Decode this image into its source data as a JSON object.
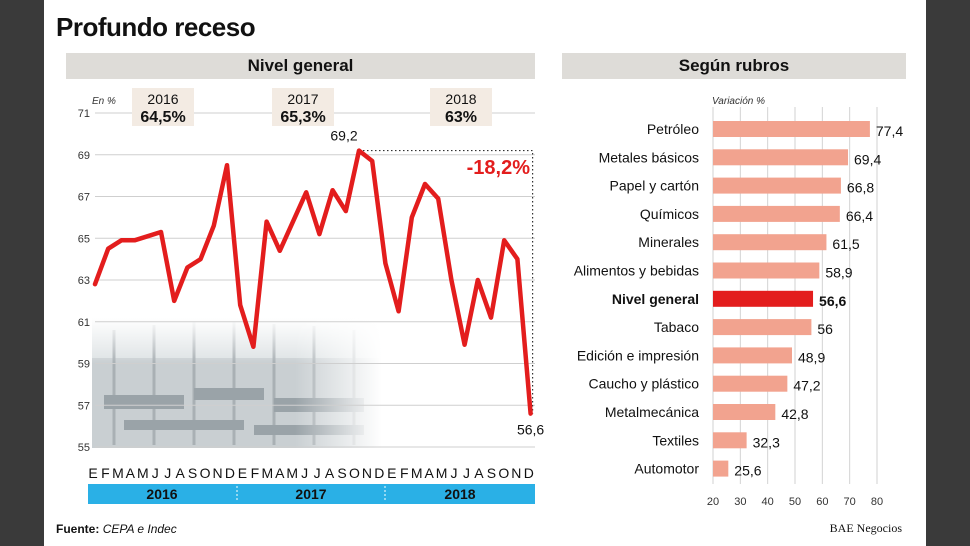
{
  "title": "Profundo receso",
  "left_panel": {
    "header": "Nivel general",
    "unit_label": "En %"
  },
  "right_panel": {
    "header": "Según rubros",
    "unit_label": "Variación %"
  },
  "source": {
    "label": "Fuente:",
    "text": "CEPA e Indec"
  },
  "credit": "BAE Negocios",
  "colors": {
    "line": "#e31d1d",
    "bar": "#f2a38f",
    "highlight_bar": "#e31d1d",
    "year_band": "#2ab0e6",
    "header_band": "#dedcd8"
  },
  "chart_data": [
    {
      "type": "line",
      "y_ticks": [
        "55",
        "57",
        "59",
        "61",
        "63",
        "65",
        "67",
        "69",
        "71"
      ],
      "ylim": [
        55,
        71
      ],
      "month_labels": [
        "E",
        "F",
        "M",
        "A",
        "M",
        "J",
        "J",
        "A",
        "S",
        "O",
        "N",
        "D",
        "E",
        "F",
        "M",
        "A",
        "M",
        "J",
        "J",
        "A",
        "S",
        "O",
        "N",
        "D",
        "E",
        "F",
        "M",
        "A",
        "M",
        "J",
        "J",
        "A",
        "S",
        "O",
        "N",
        "D"
      ],
      "years": [
        "2016",
        "2017",
        "2018"
      ],
      "year_averages": [
        {
          "year": "2016",
          "value": "64,5%"
        },
        {
          "year": "2017",
          "value": "65,3%"
        },
        {
          "year": "2018",
          "value": "63%"
        }
      ],
      "series": [
        {
          "values": [
            62.8,
            64.5,
            64.9,
            64.9,
            65.1,
            65.3,
            62.0,
            63.6,
            64.0,
            65.6,
            68.5,
            61.8,
            59.8,
            65.8,
            64.4,
            65.8,
            67.2,
            65.2,
            67.3,
            66.3,
            69.2,
            68.7,
            63.8,
            61.5,
            66.0,
            67.6,
            66.9,
            63.0,
            59.9,
            63.0,
            61.2,
            64.9,
            64.0,
            56.6
          ]
        }
      ],
      "annotations": {
        "peak_label": "69,2",
        "end_label": "56,6",
        "change_label": "-18,2%"
      }
    },
    {
      "type": "bar",
      "categories": [
        "Petróleo",
        "Metales básicos",
        "Papel y cartón",
        "Químicos",
        "Minerales",
        "Alimentos y bebidas",
        "Nivel general",
        "Tabaco",
        "Edición e impresión",
        "Caucho y plástico",
        "Metalmecánica",
        "Textiles",
        "Automotor"
      ],
      "values": [
        77.4,
        69.4,
        66.8,
        66.4,
        61.5,
        58.9,
        56.6,
        56,
        48.9,
        47.2,
        42.8,
        32.3,
        25.6
      ],
      "value_labels": [
        "77,4",
        "69,4",
        "66,8",
        "66,4",
        "61,5",
        "58,9",
        "56,6",
        "56",
        "48,9",
        "47,2",
        "42,8",
        "32,3",
        "25,6"
      ],
      "highlight": "Nivel general",
      "x_ticks": [
        "20",
        "30",
        "40",
        "50",
        "60",
        "70",
        "80"
      ],
      "xlim": [
        20,
        80
      ]
    }
  ]
}
